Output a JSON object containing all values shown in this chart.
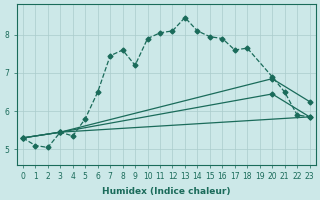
{
  "xlabel": "Humidex (Indice chaleur)",
  "xlim": [
    -0.5,
    23.5
  ],
  "ylim": [
    4.6,
    8.8
  ],
  "xtick_labels": [
    "0",
    "1",
    "2",
    "3",
    "4",
    "5",
    "6",
    "7",
    "8",
    "9",
    "10",
    "11",
    "12",
    "13",
    "14",
    "15",
    "16",
    "17",
    "18",
    "19",
    "20",
    "21",
    "22",
    "23"
  ],
  "ytick_values": [
    5,
    6,
    7,
    8
  ],
  "background_color": "#cce8e8",
  "grid_color": "#aacccc",
  "line_color": "#1a6b5a",
  "line1_x": [
    0,
    1,
    2,
    3,
    4,
    5,
    6,
    7,
    8,
    9,
    10,
    11,
    12,
    13,
    14,
    15,
    16,
    17,
    18,
    20,
    21,
    22,
    23
  ],
  "line1_y": [
    5.3,
    5.1,
    5.05,
    5.45,
    5.35,
    5.8,
    6.5,
    7.45,
    7.6,
    7.2,
    7.9,
    8.05,
    8.1,
    8.45,
    8.1,
    7.95,
    7.9,
    7.6,
    7.65,
    6.9,
    6.5,
    5.9,
    5.85
  ],
  "line2_x": [
    0,
    3,
    20,
    23
  ],
  "line2_y": [
    5.3,
    5.45,
    6.85,
    6.25
  ],
  "line3_x": [
    0,
    3,
    20,
    23
  ],
  "line3_y": [
    5.3,
    5.45,
    6.45,
    5.85
  ],
  "line4_x": [
    0,
    3,
    23
  ],
  "line4_y": [
    5.3,
    5.45,
    5.85
  ]
}
